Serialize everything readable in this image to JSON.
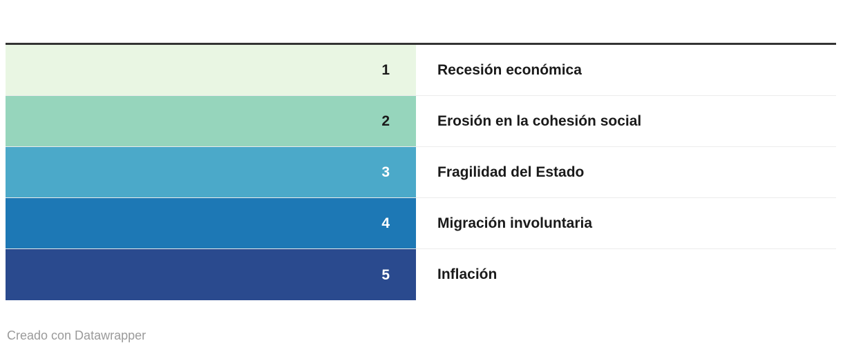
{
  "table": {
    "top_border_color": "#333333",
    "separator_color": "#ececec",
    "rows": [
      {
        "rank": "1",
        "label": "Recesión económica",
        "cell_color": "#e9f6e3",
        "rank_text_color": "#1a1a1a"
      },
      {
        "rank": "2",
        "label": "Erosión en la cohesión social",
        "cell_color": "#96d5bc",
        "rank_text_color": "#1a1a1a"
      },
      {
        "rank": "3",
        "label": "Fragilidad del Estado",
        "cell_color": "#4ba9c9",
        "rank_text_color": "#ffffff"
      },
      {
        "rank": "4",
        "label": "Migración involuntaria",
        "cell_color": "#1d78b5",
        "rank_text_color": "#ffffff"
      },
      {
        "rank": "5",
        "label": "Inflación",
        "cell_color": "#2a4a8e",
        "rank_text_color": "#ffffff"
      }
    ]
  },
  "footer": {
    "attribution": "Creado con Datawrapper"
  },
  "chart_data": {
    "type": "table",
    "title": "",
    "columns": [
      "rank",
      "label"
    ],
    "ranks": [
      1,
      2,
      3,
      4,
      5
    ],
    "labels": [
      "Recesión económica",
      "Erosión en la cohesión social",
      "Fragilidad del Estado",
      "Migración involuntaria",
      "Inflación"
    ],
    "cell_colors": [
      "#e9f6e3",
      "#96d5bc",
      "#4ba9c9",
      "#1d78b5",
      "#2a4a8e"
    ],
    "legend_position": "none",
    "grid": "row-separators"
  }
}
